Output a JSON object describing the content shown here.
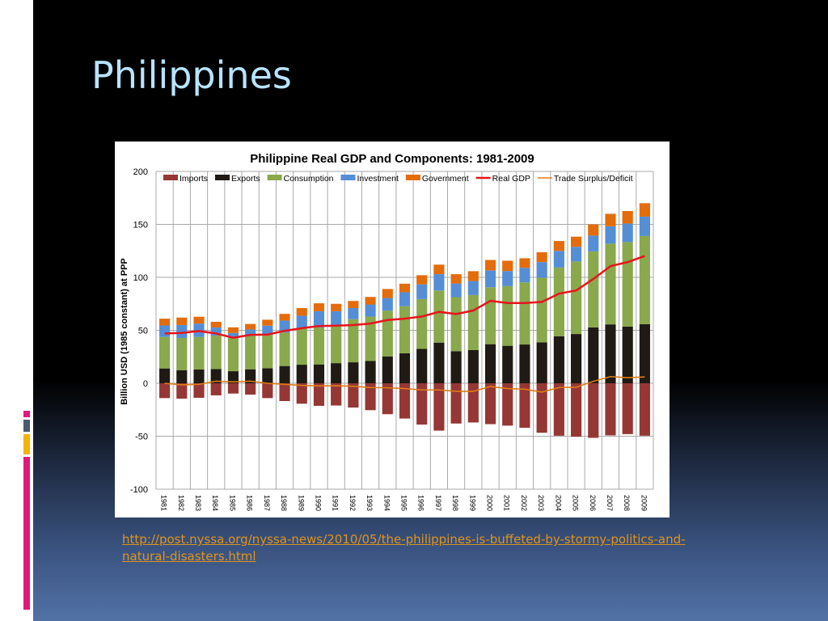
{
  "slide": {
    "title": "Philippines",
    "source_link": "http://post.nyssa.org/nyssa-news/2010/05/the-philippines-is-buffeted-by-stormy-politics-and-natural-disasters.html",
    "link_color": "#e0941c",
    "accent_colors": [
      "#e0197a",
      "#4a5b70",
      "#f5b400",
      "#e0197a"
    ]
  },
  "chart_data": {
    "type": "bar",
    "stacked": true,
    "title": "Philippine Real GDP and Components: 1981-2009",
    "xlabel": "",
    "ylabel": "Billion USD (1985 constant) at PPP",
    "ylim": [
      -100,
      200
    ],
    "yticks": [
      200,
      150,
      100,
      50,
      0,
      -50,
      -100
    ],
    "grid": true,
    "legend_position": "top",
    "categories": [
      "1981",
      "1982",
      "1983",
      "1984",
      "1985",
      "1986",
      "1987",
      "1988",
      "1989",
      "1990",
      "1991",
      "1992",
      "1993",
      "1994",
      "1995",
      "1996",
      "1997",
      "1998",
      "1999",
      "2000",
      "2001",
      "2002",
      "2003",
      "2004",
      "2005",
      "2006",
      "2007",
      "2008",
      "2009"
    ],
    "series": [
      {
        "name": "Imports",
        "kind": "bar",
        "color": "#953735",
        "values": [
          -14,
          -14.5,
          -13.7,
          -11.4,
          -9.7,
          -10.7,
          -14,
          -16.8,
          -19.3,
          -21.3,
          -21,
          -22.9,
          -25.4,
          -29.2,
          -33.3,
          -39,
          -44.7,
          -38,
          -37,
          -38.6,
          -40,
          -42,
          -46.7,
          -49.5,
          -50.5,
          -51.5,
          -49.2,
          -48,
          -49.5
        ]
      },
      {
        "name": "Exports",
        "kind": "bar",
        "color": "#1f1a14",
        "values": [
          14,
          12.4,
          13,
          13.5,
          11.4,
          13.2,
          14.2,
          16.3,
          17.5,
          17.8,
          19,
          19.8,
          21,
          25.4,
          28.3,
          32.6,
          38.4,
          30.3,
          31.3,
          36.9,
          35.4,
          36.6,
          38.6,
          44.4,
          46.5,
          52.8,
          55.6,
          53.5,
          55.8
        ]
      },
      {
        "name": "Consumption",
        "kind": "bar",
        "color": "#8aa84c",
        "values": [
          29.7,
          30.3,
          30.7,
          31.5,
          31.3,
          32.5,
          31.5,
          31.5,
          34.5,
          34.8,
          35.6,
          40.7,
          42,
          43.2,
          44.4,
          46.9,
          49.2,
          51,
          52,
          53.8,
          56.3,
          58.6,
          61.1,
          64.9,
          68.5,
          71.7,
          76.2,
          79.8,
          83.2
        ]
      },
      {
        "name": "Investment",
        "kind": "bar",
        "color": "#558ed5",
        "values": [
          10.9,
          12.3,
          12.7,
          7.6,
          4.8,
          5.1,
          8.7,
          11.4,
          11.8,
          15.4,
          13.4,
          10.5,
          11.4,
          11.9,
          13.2,
          13.9,
          15.4,
          12.9,
          13.2,
          15.9,
          14.3,
          13.8,
          14.7,
          15.7,
          13.8,
          14.9,
          16.4,
          17.5,
          18.3
        ]
      },
      {
        "name": "Government",
        "kind": "bar",
        "color": "#e46c0a",
        "values": [
          6.4,
          7,
          6.4,
          5.4,
          5.3,
          5.2,
          5.6,
          6.3,
          7.2,
          7.5,
          7,
          6.7,
          7.1,
          8.5,
          8.1,
          8.6,
          9,
          8.8,
          9.3,
          9.8,
          9.7,
          9,
          9.3,
          9.3,
          9.6,
          10.6,
          11.8,
          11.8,
          12.7
        ]
      },
      {
        "name": "Real GDP",
        "kind": "line",
        "color": "#e8141c",
        "values": [
          47,
          47.5,
          49.3,
          47,
          43,
          45.7,
          46,
          49.5,
          52,
          54,
          54.4,
          55,
          56.4,
          59.7,
          61,
          63,
          67.4,
          65.4,
          68.7,
          77.8,
          75.8,
          75.8,
          76.8,
          84.6,
          87.6,
          98.5,
          110.6,
          114.4,
          120.2
        ]
      },
      {
        "name": "Trade Surplus/Deficit",
        "kind": "line",
        "color": "#e07b14",
        "values": [
          0,
          -1.5,
          -1,
          2,
          1.3,
          2,
          0,
          -1,
          -2,
          -2.5,
          -2.3,
          -2.8,
          -4,
          -4.3,
          -5,
          -6.3,
          -6.3,
          -7.6,
          -7.6,
          -3,
          -5,
          -5.6,
          -8.3,
          -4,
          -3.8,
          1.8,
          6.3,
          5.3,
          6
        ]
      }
    ]
  }
}
